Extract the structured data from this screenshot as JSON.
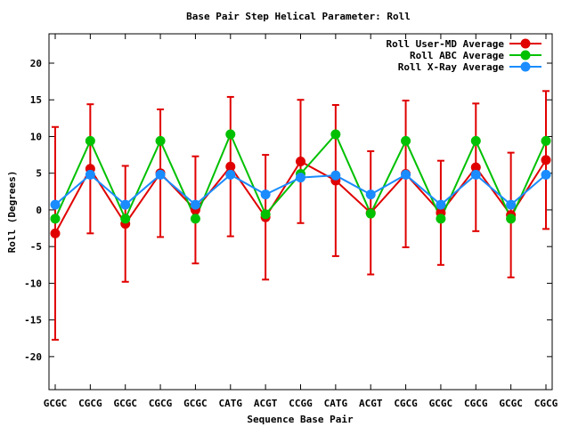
{
  "chart_data": {
    "type": "line",
    "title": "Base Pair Step Helical Parameter: Roll",
    "xlabel": "Sequence Base Pair",
    "ylabel": "Roll (Degrees)",
    "ylim": [
      -24.5,
      24
    ],
    "yticks": [
      -20,
      -15,
      -10,
      -5,
      0,
      5,
      10,
      15,
      20
    ],
    "categories": [
      "GCGC",
      "CGCG",
      "GCGC",
      "CGCG",
      "GCGC",
      "CATG",
      "ACGT",
      "CCGG",
      "CATG",
      "ACGT",
      "CGCG",
      "GCGC",
      "CGCG",
      "GCGC",
      "CGCG"
    ],
    "grid": false,
    "legend_position": "top-right",
    "series": [
      {
        "name": "Roll User-MD Average",
        "color": "#e00000",
        "values": [
          -3.2,
          5.6,
          -1.9,
          5.0,
          0.0,
          5.9,
          -1.0,
          6.6,
          4.0,
          -0.4,
          4.9,
          -0.4,
          5.8,
          -0.7,
          6.8
        ],
        "error": [
          14.5,
          8.8,
          7.9,
          8.7,
          7.3,
          9.5,
          8.5,
          8.4,
          10.3,
          8.4,
          10.0,
          7.1,
          8.7,
          8.5,
          9.4
        ]
      },
      {
        "name": "Roll ABC Average",
        "color": "#00c000",
        "values": [
          -1.2,
          9.4,
          -1.2,
          9.4,
          -1.2,
          10.3,
          -0.6,
          4.9,
          10.3,
          -0.5,
          9.4,
          -1.2,
          9.4,
          -1.2,
          9.4
        ]
      },
      {
        "name": "Roll X-Ray Average",
        "color": "#1a8cff",
        "values": [
          0.7,
          4.8,
          0.7,
          4.8,
          0.7,
          4.8,
          2.1,
          4.4,
          4.7,
          2.1,
          4.8,
          0.7,
          4.8,
          0.7,
          4.8
        ]
      }
    ]
  }
}
